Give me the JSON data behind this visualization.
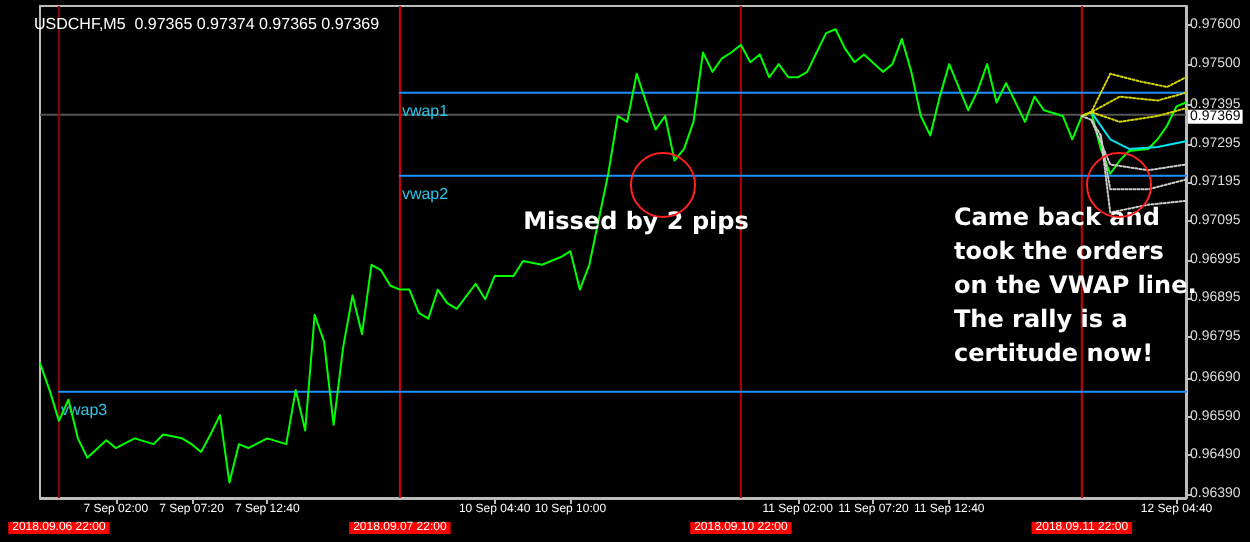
{
  "chart_data": {
    "type": "line",
    "title": "USDCHF,M5  0.97365 0.97374 0.97365 0.97369",
    "categories": [
      null,
      null,
      "2018.09.06 22:00",
      null,
      null,
      null,
      null,
      null,
      "7 Sep 02:00",
      null,
      null,
      null,
      null,
      null,
      null,
      null,
      "7 Sep 07:20",
      null,
      null,
      null,
      null,
      null,
      null,
      null,
      "7 Sep 12:40",
      null,
      null,
      null,
      null,
      null,
      null,
      null,
      null,
      null,
      null,
      null,
      null,
      null,
      "2018.09.07 22:00",
      null,
      null,
      null,
      null,
      null,
      null,
      null,
      null,
      null,
      "10 Sep 04:40",
      null,
      null,
      null,
      null,
      null,
      null,
      null,
      "10 Sep 10:00",
      null,
      null,
      null,
      null,
      null,
      null,
      null,
      null,
      null,
      null,
      null,
      null,
      null,
      null,
      null,
      null,
      null,
      "2018.09.10 22:00",
      null,
      null,
      null,
      null,
      null,
      "11 Sep 02:00",
      null,
      null,
      null,
      null,
      null,
      null,
      null,
      "11 Sep 07:20",
      null,
      null,
      null,
      null,
      null,
      null,
      null,
      "11 Sep 12:40",
      null,
      null,
      null,
      null,
      null,
      null,
      null,
      null,
      null,
      null,
      null,
      null,
      null,
      "2018.09.11 22:00",
      null,
      null,
      null,
      null,
      null,
      null,
      null,
      null,
      null,
      "12 Sep 04:40",
      null
    ],
    "series": [
      {
        "color": "#00ff00",
        "values": [
          0.96728,
          0.96659,
          0.96579,
          0.96634,
          0.96534,
          0.96484,
          null,
          0.96529,
          0.96509,
          null,
          0.96534,
          null,
          0.96519,
          0.96544,
          null,
          0.96534,
          0.96519,
          0.96499,
          0.96544,
          0.96594,
          0.9642,
          0.96519,
          0.96509,
          null,
          0.96534,
          null,
          0.96519,
          0.96659,
          0.96554,
          0.96853,
          0.96783,
          0.96569,
          0.96768,
          0.96903,
          0.96803,
          0.96982,
          0.96968,
          0.96928,
          0.96918,
          0.96918,
          0.96858,
          0.96843,
          0.96918,
          0.96883,
          0.96868,
          null,
          0.96933,
          0.96893,
          0.96953,
          null,
          0.96953,
          0.96992,
          null,
          0.96982,
          null,
          0.97002,
          0.97017,
          0.96918,
          0.96982,
          null,
          0.97217,
          0.97366,
          0.97351,
          0.97475,
          0.97401,
          0.97331,
          0.97366,
          0.97251,
          0.97281,
          0.97351,
          0.9753,
          0.9748,
          0.97515,
          0.9753,
          0.9755,
          0.97505,
          0.97525,
          0.97466,
          0.975,
          0.97466,
          0.97466,
          0.9748,
          0.9753,
          0.9758,
          0.9759,
          0.9754,
          0.97505,
          0.97525,
          null,
          0.9748,
          0.975,
          0.97565,
          0.9748,
          0.97366,
          0.97316,
          0.97416,
          0.975,
          null,
          0.97381,
          0.97431,
          0.975,
          0.97401,
          0.97451,
          null,
          0.97351,
          0.97416,
          0.97381,
          null,
          0.97366,
          0.97306,
          0.97366,
          0.97376,
          0.97281,
          0.97217,
          0.97251,
          0.97276,
          null,
          0.97281,
          0.97306,
          0.97341,
          0.97391,
          0.97401
        ]
      },
      {
        "name": "vwap1",
        "color": "#1e90ff",
        "values": [
          null,
          null,
          null,
          null,
          null,
          null,
          null,
          null,
          null,
          null,
          null,
          null,
          null,
          null,
          null,
          null,
          null,
          null,
          null,
          null,
          null,
          null,
          null,
          null,
          null,
          null,
          null,
          null,
          null,
          null,
          null,
          null,
          null,
          null,
          null,
          null,
          null,
          null,
          0.97426,
          null,
          null,
          null,
          null,
          null,
          null,
          null,
          null,
          null,
          null,
          null,
          null,
          null,
          null,
          null,
          null,
          null,
          null,
          null,
          null,
          null,
          null,
          null,
          null,
          null,
          null,
          null,
          null,
          null,
          null,
          null,
          null,
          null,
          null,
          null,
          null,
          null,
          null,
          null,
          null,
          null,
          null,
          null,
          null,
          null,
          null,
          null,
          null,
          null,
          null,
          null,
          null,
          null,
          null,
          null,
          null,
          null,
          null,
          null,
          null,
          null,
          null,
          null,
          null,
          null,
          null,
          null,
          null,
          null,
          null,
          null,
          null,
          null,
          null,
          null,
          null,
          null,
          null,
          null,
          null,
          null,
          null,
          0.97426
        ]
      },
      {
        "name": "vwap2",
        "color": "#1e90ff",
        "values": [
          null,
          null,
          null,
          null,
          null,
          null,
          null,
          null,
          null,
          null,
          null,
          null,
          null,
          null,
          null,
          null,
          null,
          null,
          null,
          null,
          null,
          null,
          null,
          null,
          null,
          null,
          null,
          null,
          null,
          null,
          null,
          null,
          null,
          null,
          null,
          null,
          null,
          null,
          0.97212,
          null,
          null,
          null,
          null,
          null,
          null,
          null,
          null,
          null,
          null,
          null,
          null,
          null,
          null,
          null,
          null,
          null,
          null,
          null,
          null,
          null,
          null,
          null,
          null,
          null,
          null,
          null,
          null,
          null,
          null,
          null,
          null,
          null,
          null,
          null,
          null,
          null,
          null,
          null,
          null,
          null,
          null,
          null,
          null,
          null,
          null,
          null,
          null,
          null,
          null,
          null,
          null,
          null,
          null,
          null,
          null,
          null,
          null,
          null,
          null,
          null,
          null,
          null,
          null,
          null,
          null,
          null,
          null,
          null,
          null,
          null,
          null,
          null,
          null,
          null,
          null,
          null,
          null,
          null,
          null,
          null,
          null,
          0.97212
        ]
      },
      {
        "name": "vwap3",
        "color": "#1e90ff",
        "values": [
          null,
          null,
          0.96654,
          null,
          null,
          null,
          null,
          null,
          null,
          null,
          null,
          null,
          null,
          null,
          null,
          null,
          null,
          null,
          null,
          null,
          null,
          null,
          null,
          null,
          null,
          null,
          null,
          null,
          null,
          null,
          null,
          null,
          null,
          null,
          null,
          null,
          null,
          null,
          null,
          null,
          null,
          null,
          null,
          null,
          null,
          null,
          null,
          null,
          null,
          null,
          null,
          null,
          null,
          null,
          null,
          null,
          null,
          null,
          null,
          null,
          null,
          null,
          null,
          null,
          null,
          null,
          null,
          null,
          null,
          null,
          null,
          null,
          null,
          null,
          null,
          null,
          null,
          null,
          null,
          null,
          null,
          null,
          null,
          null,
          null,
          null,
          null,
          null,
          null,
          null,
          null,
          null,
          null,
          null,
          null,
          null,
          null,
          null,
          null,
          null,
          null,
          null,
          null,
          null,
          null,
          null,
          null,
          null,
          null,
          null,
          null,
          null,
          null,
          null,
          null,
          null,
          null,
          null,
          null,
          null,
          null,
          0.96654
        ]
      },
      {
        "color": "#00e5ee",
        "values": [
          null,
          null,
          null,
          null,
          null,
          null,
          null,
          null,
          null,
          null,
          null,
          null,
          null,
          null,
          null,
          null,
          null,
          null,
          null,
          null,
          null,
          null,
          null,
          null,
          null,
          null,
          null,
          null,
          null,
          null,
          null,
          null,
          null,
          null,
          null,
          null,
          null,
          null,
          null,
          null,
          null,
          null,
          null,
          null,
          null,
          null,
          null,
          null,
          null,
          null,
          null,
          null,
          null,
          null,
          null,
          null,
          null,
          null,
          null,
          null,
          null,
          null,
          null,
          null,
          null,
          null,
          null,
          null,
          null,
          null,
          null,
          null,
          null,
          null,
          null,
          null,
          null,
          null,
          null,
          null,
          null,
          null,
          null,
          null,
          null,
          null,
          null,
          null,
          null,
          null,
          null,
          null,
          null,
          null,
          null,
          null,
          null,
          null,
          null,
          null,
          null,
          null,
          null,
          null,
          null,
          null,
          null,
          null,
          null,
          null,
          null,
          0.97376,
          null,
          0.97306,
          null,
          0.97281,
          null,
          null,
          0.97286,
          null,
          null,
          0.97301
        ]
      },
      {
        "color": "#d4d400",
        "line_style": "dotted",
        "values": [
          null,
          null,
          null,
          null,
          null,
          null,
          null,
          null,
          null,
          null,
          null,
          null,
          null,
          null,
          null,
          null,
          null,
          null,
          null,
          null,
          null,
          null,
          null,
          null,
          null,
          null,
          null,
          null,
          null,
          null,
          null,
          null,
          null,
          null,
          null,
          null,
          null,
          null,
          null,
          null,
          null,
          null,
          null,
          null,
          null,
          null,
          null,
          null,
          null,
          null,
          null,
          null,
          null,
          null,
          null,
          null,
          null,
          null,
          null,
          null,
          null,
          null,
          null,
          null,
          null,
          null,
          null,
          null,
          null,
          null,
          null,
          null,
          null,
          null,
          null,
          null,
          null,
          null,
          null,
          null,
          null,
          null,
          null,
          null,
          null,
          null,
          null,
          null,
          null,
          null,
          null,
          null,
          null,
          null,
          null,
          null,
          null,
          null,
          null,
          null,
          null,
          null,
          null,
          null,
          null,
          null,
          null,
          null,
          null,
          null,
          0.97366,
          0.97376,
          null,
          0.97475,
          null,
          null,
          0.97456,
          null,
          null,
          0.97441,
          null,
          0.97466
        ]
      },
      {
        "color": "#d4d400",
        "line_style": "dotted",
        "values": [
          null,
          null,
          null,
          null,
          null,
          null,
          null,
          null,
          null,
          null,
          null,
          null,
          null,
          null,
          null,
          null,
          null,
          null,
          null,
          null,
          null,
          null,
          null,
          null,
          null,
          null,
          null,
          null,
          null,
          null,
          null,
          null,
          null,
          null,
          null,
          null,
          null,
          null,
          null,
          null,
          null,
          null,
          null,
          null,
          null,
          null,
          null,
          null,
          null,
          null,
          null,
          null,
          null,
          null,
          null,
          null,
          null,
          null,
          null,
          null,
          null,
          null,
          null,
          null,
          null,
          null,
          null,
          null,
          null,
          null,
          null,
          null,
          null,
          null,
          null,
          null,
          null,
          null,
          null,
          null,
          null,
          null,
          null,
          null,
          null,
          null,
          null,
          null,
          null,
          null,
          null,
          null,
          null,
          null,
          null,
          null,
          null,
          null,
          null,
          null,
          null,
          null,
          null,
          null,
          null,
          null,
          null,
          null,
          null,
          null,
          0.97366,
          0.97376,
          null,
          null,
          0.97416,
          null,
          null,
          null,
          0.97406,
          null,
          null,
          0.97426
        ]
      },
      {
        "color": "#d4d400",
        "line_style": "dotted",
        "values": [
          null,
          null,
          null,
          null,
          null,
          null,
          null,
          null,
          null,
          null,
          null,
          null,
          null,
          null,
          null,
          null,
          null,
          null,
          null,
          null,
          null,
          null,
          null,
          null,
          null,
          null,
          null,
          null,
          null,
          null,
          null,
          null,
          null,
          null,
          null,
          null,
          null,
          null,
          null,
          null,
          null,
          null,
          null,
          null,
          null,
          null,
          null,
          null,
          null,
          null,
          null,
          null,
          null,
          null,
          null,
          null,
          null,
          null,
          null,
          null,
          null,
          null,
          null,
          null,
          null,
          null,
          null,
          null,
          null,
          null,
          null,
          null,
          null,
          null,
          null,
          null,
          null,
          null,
          null,
          null,
          null,
          null,
          null,
          null,
          null,
          null,
          null,
          null,
          null,
          null,
          null,
          null,
          null,
          null,
          null,
          null,
          null,
          null,
          null,
          null,
          null,
          null,
          null,
          null,
          null,
          null,
          null,
          null,
          null,
          null,
          0.97366,
          0.97376,
          null,
          null,
          0.97351,
          null,
          null,
          null,
          0.97366,
          null,
          null,
          0.97386
        ]
      },
      {
        "color": "#cccccc",
        "line_style": "dotted",
        "values": [
          null,
          null,
          null,
          null,
          null,
          null,
          null,
          null,
          null,
          null,
          null,
          null,
          null,
          null,
          null,
          null,
          null,
          null,
          null,
          null,
          null,
          null,
          null,
          null,
          null,
          null,
          null,
          null,
          null,
          null,
          null,
          null,
          null,
          null,
          null,
          null,
          null,
          null,
          null,
          null,
          null,
          null,
          null,
          null,
          null,
          null,
          null,
          null,
          null,
          null,
          null,
          null,
          null,
          null,
          null,
          null,
          null,
          null,
          null,
          null,
          null,
          null,
          null,
          null,
          null,
          null,
          null,
          null,
          null,
          null,
          null,
          null,
          null,
          null,
          null,
          null,
          null,
          null,
          null,
          null,
          null,
          null,
          null,
          null,
          null,
          null,
          null,
          null,
          null,
          null,
          null,
          null,
          null,
          null,
          null,
          null,
          null,
          null,
          null,
          null,
          null,
          null,
          null,
          null,
          null,
          null,
          null,
          null,
          null,
          null,
          0.97366,
          0.97356,
          null,
          0.97241,
          null,
          null,
          null,
          0.97226,
          null,
          null,
          null,
          0.97241
        ]
      },
      {
        "color": "#cccccc",
        "line_style": "dotted",
        "values": [
          null,
          null,
          null,
          null,
          null,
          null,
          null,
          null,
          null,
          null,
          null,
          null,
          null,
          null,
          null,
          null,
          null,
          null,
          null,
          null,
          null,
          null,
          null,
          null,
          null,
          null,
          null,
          null,
          null,
          null,
          null,
          null,
          null,
          null,
          null,
          null,
          null,
          null,
          null,
          null,
          null,
          null,
          null,
          null,
          null,
          null,
          null,
          null,
          null,
          null,
          null,
          null,
          null,
          null,
          null,
          null,
          null,
          null,
          null,
          null,
          null,
          null,
          null,
          null,
          null,
          null,
          null,
          null,
          null,
          null,
          null,
          null,
          null,
          null,
          null,
          null,
          null,
          null,
          null,
          null,
          null,
          null,
          null,
          null,
          null,
          null,
          null,
          null,
          null,
          null,
          null,
          null,
          null,
          null,
          null,
          null,
          null,
          null,
          null,
          null,
          null,
          null,
          null,
          null,
          null,
          null,
          null,
          null,
          null,
          null,
          null,
          0.97356,
          0.97316,
          0.97177,
          null,
          null,
          null,
          0.97177,
          null,
          null,
          null,
          0.97202
        ]
      },
      {
        "color": "#cccccc",
        "line_style": "dotted",
        "values": [
          null,
          null,
          null,
          null,
          null,
          null,
          null,
          null,
          null,
          null,
          null,
          null,
          null,
          null,
          null,
          null,
          null,
          null,
          null,
          null,
          null,
          null,
          null,
          null,
          null,
          null,
          null,
          null,
          null,
          null,
          null,
          null,
          null,
          null,
          null,
          null,
          null,
          null,
          null,
          null,
          null,
          null,
          null,
          null,
          null,
          null,
          null,
          null,
          null,
          null,
          null,
          null,
          null,
          null,
          null,
          null,
          null,
          null,
          null,
          null,
          null,
          null,
          null,
          null,
          null,
          null,
          null,
          null,
          null,
          null,
          null,
          null,
          null,
          null,
          null,
          null,
          null,
          null,
          null,
          null,
          null,
          null,
          null,
          null,
          null,
          null,
          null,
          null,
          null,
          null,
          null,
          null,
          null,
          null,
          null,
          null,
          null,
          null,
          null,
          null,
          null,
          null,
          null,
          null,
          null,
          null,
          null,
          null,
          null,
          null,
          null,
          null,
          0.97316,
          0.97117,
          null,
          null,
          null,
          0.97137,
          null,
          null,
          null,
          0.97147
        ]
      }
    ],
    "ylim": [
      0.9638,
      0.9765
    ],
    "yticks": [
      {
        "value": 0.9639,
        "label": "0.96390"
      },
      {
        "value": 0.9649,
        "label": "0.96490"
      },
      {
        "value": 0.9659,
        "label": "0.96590"
      },
      {
        "value": 0.9669,
        "label": "0.96690"
      },
      {
        "value": 0.96795,
        "label": "0.96795"
      },
      {
        "value": 0.96895,
        "label": "0.96895"
      },
      {
        "value": 0.96995,
        "label": "0.96995"
      },
      {
        "value": 0.97095,
        "label": "0.97095"
      },
      {
        "value": 0.97195,
        "label": "0.97195"
      },
      {
        "value": 0.97295,
        "label": "0.97295"
      },
      {
        "value": 0.97395,
        "label": "0.97395"
      },
      {
        "value": 0.975,
        "label": "0.97500"
      },
      {
        "value": 0.976,
        "label": "0.97600"
      }
    ],
    "ref_lines": [
      {
        "axis": "x",
        "value": "2018.09.06 22:00",
        "color": "#8b0000"
      },
      {
        "axis": "x",
        "value": "2018.09.07 22:00",
        "color": "#e00000"
      },
      {
        "axis": "x",
        "value": "2018.09.10 22:00",
        "color": "#b40000"
      },
      {
        "axis": "x",
        "value": "2018.09.11 22:00",
        "color": "#d20000"
      },
      {
        "axis": "y",
        "value": 0.97369,
        "label": "0.97369",
        "color": "#555555"
      }
    ],
    "annotations": [
      "Missed by 2 pips",
      "Came back and\ntook the orders\non the VWAP line.\nThe rally is a\ncertitude now!"
    ],
    "grid": false,
    "legend": false
  }
}
